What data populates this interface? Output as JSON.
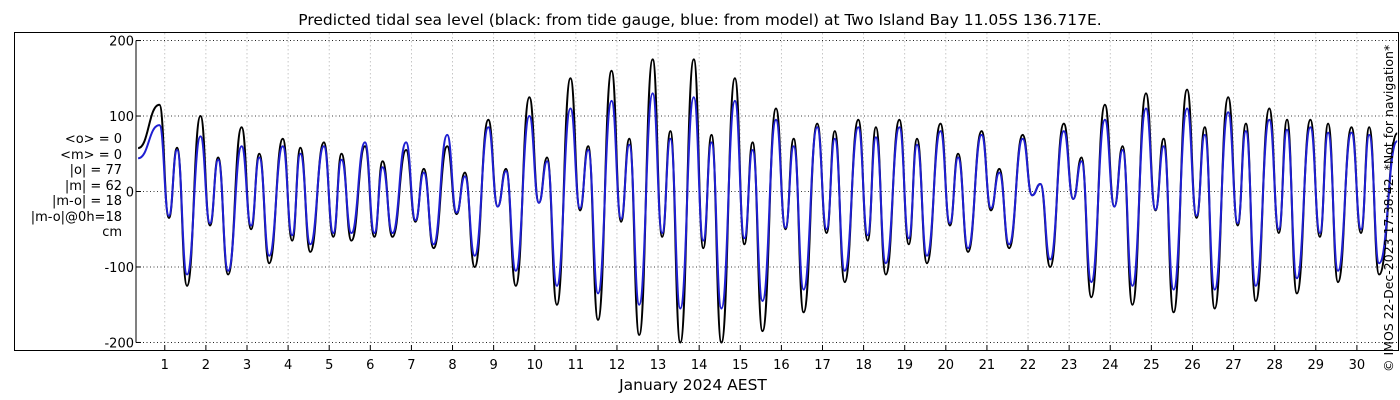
{
  "chart_data": {
    "type": "line",
    "title": "Predicted tidal sea level (black: from tide gauge, blue: from model) at Two Island Bay 11.05S 136.717E.",
    "xlabel": "January 2024 AEST",
    "ylabel": "",
    "xlim": [
      0.3,
      31.0
    ],
    "ylim": [
      -210,
      210
    ],
    "x_ticks": [
      "1",
      "2",
      "3",
      "4",
      "5",
      "6",
      "7",
      "8",
      "9",
      "10",
      "11",
      "12",
      "13",
      "14",
      "15",
      "16",
      "17",
      "18",
      "19",
      "20",
      "21",
      "22",
      "23",
      "24",
      "25",
      "26",
      "27",
      "28",
      "29",
      "30"
    ],
    "y_ticks": [
      200,
      100,
      0,
      -100,
      -200
    ],
    "grid": true,
    "series": [
      {
        "name": "",
        "color": "#000000",
        "x": [
          1,
          2,
          3,
          4,
          5,
          6,
          7,
          8,
          9,
          10,
          11,
          12,
          13,
          14,
          15,
          16,
          17,
          18,
          19,
          20,
          21,
          22,
          23,
          24,
          25,
          26,
          27,
          28,
          29,
          30
        ],
        "high_major": [
          115,
          100,
          85,
          70,
          65,
          60,
          55,
          60,
          95,
          125,
          150,
          160,
          175,
          175,
          150,
          110,
          90,
          95,
          95,
          90,
          80,
          75,
          90,
          115,
          130,
          135,
          125,
          110,
          95,
          85
        ],
        "high_minor": [
          58,
          45,
          50,
          58,
          50,
          40,
          30,
          25,
          30,
          45,
          60,
          70,
          80,
          75,
          65,
          70,
          80,
          85,
          70,
          50,
          30,
          10,
          45,
          60,
          70,
          85,
          90,
          95,
          90,
          85
        ],
        "low_major": [
          -125,
          -110,
          -95,
          -80,
          -65,
          -60,
          -75,
          -100,
          -125,
          -150,
          -170,
          -190,
          -200,
          -200,
          -185,
          -160,
          -120,
          -110,
          -95,
          -80,
          -75,
          -100,
          -140,
          -150,
          -160,
          -155,
          -145,
          -135,
          -120,
          -110
        ],
        "low_minor": [
          -35,
          -45,
          -50,
          -65,
          -60,
          -60,
          -40,
          -30,
          -20,
          -15,
          -25,
          -40,
          -60,
          -75,
          -70,
          -50,
          -55,
          -65,
          -70,
          -45,
          -25,
          -5,
          -10,
          -20,
          -25,
          -35,
          -45,
          -55,
          -60,
          -55
        ]
      },
      {
        "name": "",
        "color": "#1f1fd2",
        "x": [
          1,
          2,
          3,
          4,
          5,
          6,
          7,
          8,
          9,
          10,
          11,
          12,
          13,
          14,
          15,
          16,
          17,
          18,
          19,
          20,
          21,
          22,
          23,
          24,
          25,
          26,
          27,
          28,
          29,
          30
        ],
        "high_major": [
          88,
          73,
          60,
          60,
          60,
          65,
          65,
          75,
          85,
          100,
          110,
          120,
          130,
          125,
          120,
          95,
          85,
          85,
          85,
          80,
          75,
          70,
          80,
          95,
          110,
          110,
          105,
          95,
          85,
          78
        ],
        "high_minor": [
          55,
          42,
          45,
          50,
          42,
          32,
          25,
          20,
          27,
          40,
          55,
          62,
          70,
          65,
          55,
          60,
          70,
          72,
          62,
          45,
          25,
          10,
          40,
          55,
          60,
          75,
          80,
          82,
          78,
          75
        ],
        "low_major": [
          -110,
          -105,
          -85,
          -70,
          -55,
          -55,
          -70,
          -85,
          -105,
          -125,
          -135,
          -150,
          -155,
          -155,
          -145,
          -130,
          -105,
          -95,
          -85,
          -75,
          -70,
          -90,
          -120,
          -125,
          -130,
          -130,
          -125,
          -115,
          -105,
          -95
        ],
        "low_minor": [
          -32,
          -42,
          -45,
          -58,
          -55,
          -55,
          -38,
          -28,
          -20,
          -15,
          -22,
          -36,
          -55,
          -65,
          -62,
          -48,
          -50,
          -58,
          -62,
          -42,
          -22,
          -5,
          -10,
          -20,
          -24,
          -32,
          -42,
          -50,
          -55,
          -50
        ]
      }
    ]
  },
  "stats": [
    "<o> = 0",
    "<m> = 0",
    "|o| = 77",
    "|m| = 62",
    "|m-o| = 18",
    "|m-o|@0h=18",
    "cm"
  ],
  "credit": "© IMOS 22-Dec-2023 17:38:42. *Not for navigation*"
}
